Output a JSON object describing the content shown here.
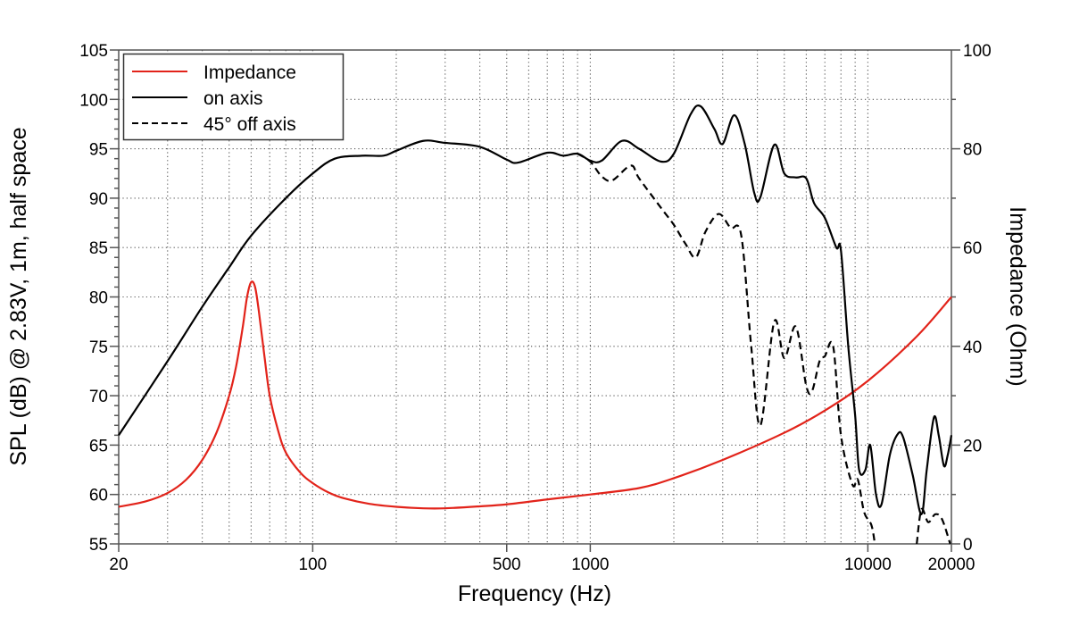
{
  "chart_data": {
    "type": "line",
    "title": "",
    "xlabel": "Frequency (Hz)",
    "ylabel": "SPL (dB) @ 2.83V, 1m, half space",
    "y2label": "Impedance (Ohm)",
    "xscale": "log",
    "xlim": [
      20,
      20000
    ],
    "ylim": [
      55,
      105
    ],
    "y2lim": [
      0,
      100
    ],
    "grid": true,
    "legend_position": "top-left",
    "x_tick_labels": [
      "20",
      "100",
      "500",
      "1000",
      "10000",
      "20000"
    ],
    "x_tick_values": [
      20,
      100,
      500,
      1000,
      10000,
      20000
    ],
    "y_tick_labels": [
      "55",
      "60",
      "65",
      "70",
      "75",
      "80",
      "85",
      "90",
      "95",
      "100",
      "105"
    ],
    "y_tick_values": [
      55,
      60,
      65,
      70,
      75,
      80,
      85,
      90,
      95,
      100,
      105
    ],
    "y2_tick_labels": [
      "0",
      "20",
      "40",
      "60",
      "80",
      "100"
    ],
    "y2_tick_values": [
      0,
      20,
      40,
      60,
      80,
      100
    ],
    "series": [
      {
        "name": "Impedance",
        "axis": "right",
        "color": "#e2231a",
        "style": "solid",
        "x": [
          20,
          25,
          30,
          35,
          40,
          45,
          50,
          53,
          56,
          58,
          60,
          62,
          64,
          67,
          70,
          75,
          80,
          90,
          100,
          115,
          130,
          160,
          200,
          250,
          300,
          400,
          500,
          700,
          1000,
          1500,
          2000,
          3000,
          5000,
          7000,
          10000,
          15000,
          20000
        ],
        "values": [
          7.5,
          8.6,
          10.3,
          13,
          17,
          22.5,
          30,
          36,
          44,
          50,
          53,
          52,
          47,
          38,
          30,
          23,
          18.5,
          14.5,
          12.3,
          10.3,
          9.2,
          8.1,
          7.5,
          7.2,
          7.2,
          7.6,
          8,
          9,
          10,
          11.3,
          13.3,
          17,
          22.5,
          27,
          33,
          42,
          50
        ]
      },
      {
        "name": "on axis",
        "axis": "left",
        "color": "#000000",
        "style": "solid",
        "x": [
          20,
          30,
          40,
          50,
          60,
          80,
          100,
          120,
          150,
          180,
          200,
          250,
          300,
          400,
          500,
          550,
          700,
          800,
          900,
          1000,
          1100,
          1300,
          1500,
          1800,
          2000,
          2300,
          2500,
          2800,
          3000,
          3300,
          3600,
          3900,
          4100,
          4600,
          5000,
          5500,
          6000,
          6400,
          7000,
          7700,
          8000,
          8500,
          9000,
          9300,
          9800,
          10200,
          10700,
          11200,
          12000,
          12800,
          13400,
          14500,
          15600,
          16300,
          17300,
          18000,
          18800,
          19400,
          20000
        ],
        "values": [
          66,
          73.5,
          79,
          83,
          86.2,
          90,
          92.5,
          94,
          94.3,
          94.3,
          94.8,
          95.8,
          95.6,
          95.2,
          93.9,
          93.6,
          94.6,
          94.3,
          94.5,
          93.8,
          93.8,
          95.8,
          95,
          93.7,
          94.5,
          98.5,
          99.3,
          97,
          95.5,
          98.4,
          95.5,
          90.5,
          90.1,
          95.4,
          92.5,
          92.1,
          92,
          89.5,
          88,
          85,
          84.7,
          75,
          68,
          62.5,
          62.5,
          65,
          60,
          59,
          64,
          66.1,
          65.8,
          62,
          58,
          62.5,
          67.8,
          66,
          62.9,
          64,
          66
        ]
      },
      {
        "name": "45° off axis",
        "axis": "left",
        "color": "#000000",
        "style": "dashed",
        "segments": [
          {
            "x": [
              900,
              1000,
              1100,
              1200,
              1400,
              1500,
              1800,
              2000,
              2200,
              2400,
              2600,
              2900,
              3200,
              3500,
              3800,
              4100,
              4600,
              5000,
              5500,
              6000,
              6300,
              6700,
              7000,
              7500,
              8000,
              8800,
              9200,
              9700,
              10300,
              10600
            ],
            "values": [
              94.5,
              93.7,
              92.2,
              91.8,
              93.3,
              92,
              89,
              87.3,
              85.4,
              84,
              86.6,
              88.4,
              87,
              86.2,
              75,
              67,
              77.5,
              73.8,
              77,
              71,
              70.5,
              73.5,
              74,
              75,
              66,
              61,
              61.5,
              58.2,
              56.9,
              55
            ]
          },
          {
            "x": [
              15000,
              15600,
              16500,
              17500,
              18500,
              19800
            ],
            "values": [
              55,
              58.5,
              57.2,
              58,
              57.5,
              55
            ]
          }
        ]
      }
    ]
  },
  "legend": {
    "items": [
      {
        "label": "Impedance",
        "color": "#e2231a",
        "style": "solid"
      },
      {
        "label": "on axis",
        "color": "#000000",
        "style": "solid"
      },
      {
        "label": "45° off axis",
        "color": "#000000",
        "style": "dashed"
      }
    ]
  }
}
